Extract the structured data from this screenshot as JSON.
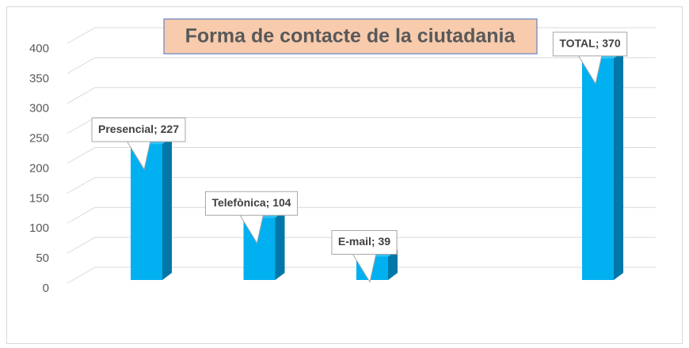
{
  "chart_data": {
    "type": "bar3d",
    "title": "Forma de contacte de la ciutadania",
    "categories": [
      "Presencial",
      "Telefònica",
      "E-mail",
      null,
      "TOTAL"
    ],
    "values": [
      227,
      104,
      39,
      null,
      370
    ],
    "value_labels": [
      "Presencial; 227",
      "Telefònica; 104",
      "E-mail; 39",
      null,
      "TOTAL; 370"
    ],
    "color": "#00b0f0",
    "ylim": [
      0,
      400
    ],
    "yticks": [
      0,
      50,
      100,
      150,
      200,
      250,
      300,
      350,
      400
    ],
    "grid": true
  }
}
